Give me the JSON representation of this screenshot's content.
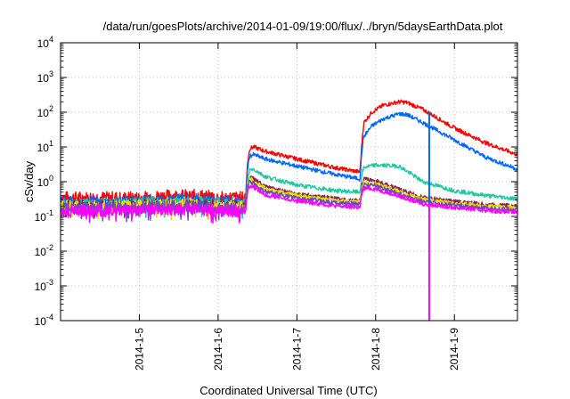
{
  "chart_data": {
    "type": "line",
    "title": "/data/run/goesPlots/archive/2014-01-09/19:00/flux/../bryn/5daysEarthData.plot",
    "xlabel": "Coordinated Universal Time (UTC)",
    "ylabel": "cSv/day",
    "y_scale": "log",
    "ylim": [
      0.0001,
      10000
    ],
    "xlim": [
      0.0,
      5.8
    ],
    "grid": true,
    "x_ticks": [
      {
        "value": 1,
        "label": "2014-1-5"
      },
      {
        "value": 2,
        "label": "2014-1-6"
      },
      {
        "value": 3,
        "label": "2014-1-7"
      },
      {
        "value": 4,
        "label": "2014-1-8"
      },
      {
        "value": 5,
        "label": "2014-1-9"
      }
    ],
    "y_ticks": [
      {
        "value": 0.0001,
        "base": "10",
        "exp": "-4"
      },
      {
        "value": 0.001,
        "base": "10",
        "exp": "-3"
      },
      {
        "value": 0.01,
        "base": "10",
        "exp": "-2"
      },
      {
        "value": 0.1,
        "base": "10",
        "exp": "-1"
      },
      {
        "value": 1,
        "base": "10",
        "exp": "0"
      },
      {
        "value": 10,
        "base": "10",
        "exp": "1"
      },
      {
        "value": 100,
        "base": "10",
        "exp": "2"
      },
      {
        "value": 1000,
        "base": "10",
        "exp": "3"
      },
      {
        "value": 10000,
        "base": "10",
        "exp": "4"
      }
    ],
    "series": [
      {
        "color": "#ff0000",
        "x": [
          0.0,
          0.6,
          1.0,
          1.4,
          1.8,
          2.0,
          2.35,
          2.37,
          2.4,
          2.45,
          2.6,
          3.0,
          3.5,
          3.8,
          3.83,
          3.85,
          3.95,
          4.1,
          4.3,
          4.4,
          4.6,
          5.0,
          5.4,
          5.8
        ],
        "y": [
          0.35,
          0.35,
          0.35,
          0.4,
          0.4,
          0.35,
          0.35,
          3.0,
          9.0,
          10.0,
          7.5,
          4.5,
          2.5,
          1.9,
          18.0,
          50.0,
          100.0,
          160.0,
          200.0,
          190.0,
          120.0,
          35.0,
          13.0,
          6.0
        ]
      },
      {
        "color": "#0066ff",
        "x": [
          0.0,
          0.6,
          1.0,
          1.4,
          1.8,
          2.0,
          2.35,
          2.37,
          2.4,
          2.45,
          2.6,
          3.0,
          3.5,
          3.8,
          3.83,
          3.85,
          3.95,
          4.1,
          4.3,
          4.4,
          4.6,
          5.0,
          5.4,
          5.8
        ],
        "y": [
          0.25,
          0.25,
          0.27,
          0.3,
          0.3,
          0.27,
          0.27,
          2.0,
          5.5,
          6.0,
          4.5,
          2.8,
          1.6,
          1.2,
          10.0,
          20.0,
          40.0,
          65.0,
          90.0,
          85.0,
          50.0,
          16.0,
          5.0,
          2.3
        ]
      },
      {
        "color": "#1ec8a0",
        "x": [
          0.0,
          0.6,
          1.0,
          1.4,
          1.8,
          2.0,
          2.35,
          2.37,
          2.4,
          2.45,
          2.6,
          3.0,
          3.5,
          3.8,
          3.83,
          3.85,
          4.0,
          4.3,
          4.6,
          5.0,
          5.4,
          5.8
        ],
        "y": [
          0.22,
          0.22,
          0.24,
          0.25,
          0.25,
          0.23,
          0.23,
          1.0,
          2.2,
          2.3,
          1.4,
          0.8,
          0.55,
          0.5,
          1.8,
          2.6,
          3.0,
          2.8,
          1.0,
          0.55,
          0.4,
          0.32
        ]
      },
      {
        "color": "#882255",
        "x": [
          0.0,
          0.6,
          1.0,
          1.4,
          1.8,
          2.0,
          2.35,
          2.37,
          2.4,
          2.45,
          2.6,
          3.0,
          3.5,
          3.8,
          3.83,
          3.85,
          4.0,
          4.3,
          4.6,
          5.0,
          5.4,
          5.8
        ],
        "y": [
          0.2,
          0.2,
          0.21,
          0.22,
          0.22,
          0.2,
          0.2,
          0.8,
          1.3,
          1.25,
          0.7,
          0.45,
          0.32,
          0.28,
          0.9,
          1.2,
          1.05,
          0.6,
          0.35,
          0.27,
          0.22,
          0.2
        ]
      },
      {
        "color": "#e8e000",
        "x": [
          0.0,
          0.6,
          1.0,
          1.4,
          1.8,
          2.0,
          2.35,
          2.37,
          2.4,
          2.45,
          2.6,
          3.0,
          3.5,
          3.8,
          3.83,
          3.85,
          4.0,
          4.3,
          4.6,
          5.0,
          5.4,
          5.8
        ],
        "y": [
          0.19,
          0.19,
          0.2,
          0.21,
          0.21,
          0.19,
          0.19,
          0.75,
          1.15,
          1.1,
          0.62,
          0.4,
          0.29,
          0.26,
          0.8,
          1.0,
          0.9,
          0.52,
          0.31,
          0.24,
          0.2,
          0.18
        ]
      },
      {
        "color": "#6a4cc0",
        "x": [
          0.0,
          0.6,
          1.0,
          1.4,
          1.8,
          2.0,
          2.35,
          2.37,
          2.4,
          2.45,
          2.6,
          3.0,
          3.5,
          3.8,
          3.83,
          3.85,
          4.0,
          4.3,
          4.6,
          5.0,
          5.4,
          5.8
        ],
        "y": [
          0.17,
          0.17,
          0.18,
          0.19,
          0.19,
          0.17,
          0.17,
          0.65,
          0.95,
          0.9,
          0.52,
          0.34,
          0.25,
          0.22,
          0.65,
          0.85,
          0.78,
          0.45,
          0.27,
          0.21,
          0.17,
          0.16
        ]
      },
      {
        "color": "#ff00ff",
        "x": [
          0.0,
          0.6,
          1.0,
          1.4,
          1.8,
          2.0,
          2.35,
          2.37,
          2.4,
          2.45,
          2.6,
          3.0,
          3.5,
          3.8,
          3.83,
          3.85,
          4.0,
          4.3,
          4.6,
          5.0,
          5.4,
          5.8
        ],
        "y": [
          0.14,
          0.14,
          0.15,
          0.16,
          0.16,
          0.14,
          0.14,
          0.5,
          0.72,
          0.7,
          0.42,
          0.28,
          0.2,
          0.18,
          0.5,
          0.65,
          0.62,
          0.38,
          0.23,
          0.18,
          0.15,
          0.13
        ]
      }
    ],
    "annotations": [
      {
        "color": "#0066ff",
        "x": 4.68,
        "y_from": 100,
        "y_to": 0.25
      },
      {
        "color": "#ff00ff",
        "x": 4.68,
        "y_from": 0.25,
        "y_to": 0.0001
      }
    ]
  }
}
